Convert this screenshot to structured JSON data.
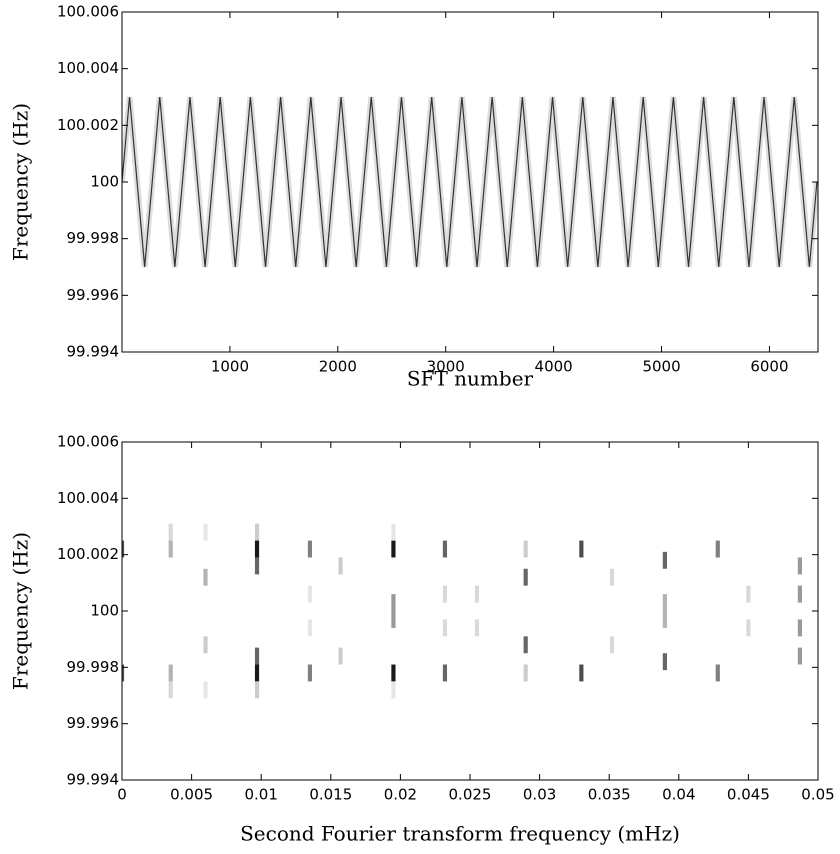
{
  "chart_data": [
    {
      "type": "line",
      "xlabel": "SFT number",
      "ylabel": "Frequency (Hz)",
      "xlim": [
        0,
        6450
      ],
      "xticks": [
        1000,
        2000,
        3000,
        4000,
        5000,
        6000
      ],
      "ylim": [
        99.994,
        100.006
      ],
      "yticks": [
        99.994,
        99.996,
        99.998,
        100,
        100.002,
        100.004,
        100.006
      ],
      "x": [
        0,
        70,
        140,
        210,
        280,
        350,
        420,
        490,
        560,
        630,
        700,
        770,
        840,
        910,
        980,
        1050,
        1120,
        1190,
        1260,
        1330,
        1400,
        1470,
        1540,
        1610,
        1680,
        1750,
        1820,
        1890,
        1960,
        2030,
        2100,
        2170,
        2240,
        2310,
        2380,
        2450,
        2520,
        2590,
        2660,
        2730,
        2800,
        2870,
        2940,
        3010,
        3080,
        3150,
        3220,
        3290,
        3360,
        3430,
        3500,
        3570,
        3640,
        3710,
        3780,
        3850,
        3920,
        3990,
        4060,
        4130,
        4200,
        4270,
        4340,
        4410,
        4480,
        4550,
        4620,
        4690,
        4760,
        4830,
        4900,
        4970,
        5040,
        5110,
        5180,
        5250,
        5320,
        5390,
        5460,
        5530,
        5600,
        5670,
        5740,
        5810,
        5880,
        5950,
        6020,
        6090,
        6160,
        6230,
        6300,
        6370,
        6440
      ],
      "series": [
        {
          "color": "#333333",
          "values": [
            100,
            100.003,
            100,
            99.997,
            100,
            100.003,
            100,
            99.997,
            100,
            100.003,
            100,
            99.997,
            100,
            100.003,
            100,
            99.997,
            100,
            100.003,
            100,
            99.997,
            100,
            100.003,
            100,
            99.997,
            100,
            100.003,
            100,
            99.997,
            100,
            100.003,
            100,
            99.997,
            100,
            100.003,
            100,
            99.997,
            100,
            100.003,
            100,
            99.997,
            100,
            100.003,
            100,
            99.997,
            100,
            100.003,
            100,
            99.997,
            100,
            100.003,
            100,
            99.997,
            100,
            100.003,
            100,
            99.997,
            100,
            100.003,
            100,
            99.997,
            100,
            100.003,
            100,
            99.997,
            100,
            100.003,
            100,
            99.997,
            100,
            100.003,
            100,
            99.997,
            100,
            100.003,
            100,
            99.997,
            100,
            100.003,
            100,
            99.997,
            100,
            100.003,
            100,
            99.997,
            100,
            100.003,
            100,
            99.997,
            100,
            100.003,
            100,
            99.997,
            100
          ]
        }
      ]
    },
    {
      "type": "heatmap",
      "xlabel": "Second Fourier transform frequency (mHz)",
      "ylabel": "Frequency (Hz)",
      "xlim": [
        0,
        0.05
      ],
      "xticks": [
        0,
        0.005,
        0.01,
        0.015,
        0.02,
        0.025,
        0.03,
        0.035,
        0.04,
        0.045,
        0.05
      ],
      "ylim": [
        99.994,
        100.006
      ],
      "yticks": [
        99.994,
        99.996,
        99.998,
        100,
        100.002,
        100.004,
        100.006
      ],
      "x": [
        0,
        0,
        0.0035,
        0.0035,
        0.0035,
        0.0035,
        0.006,
        0.006,
        0.006,
        0.006,
        0.0097,
        0.0097,
        0.0097,
        0.0097,
        0.0097,
        0.0097,
        0.0135,
        0.0135,
        0.0135,
        0.0135,
        0.0157,
        0.0157,
        0.0195,
        0.0195,
        0.0195,
        0.0195,
        0.0195,
        0.0195,
        0.0232,
        0.0232,
        0.0232,
        0.0232,
        0.0255,
        0.0255,
        0.029,
        0.029,
        0.029,
        0.029,
        0.033,
        0.033,
        0.0352,
        0.0352,
        0.039,
        0.039,
        0.039,
        0.039,
        0.0428,
        0.0428,
        0.045,
        0.045,
        0.0487,
        0.0487,
        0.0487,
        0.0487
      ],
      "y": [
        100.0022,
        99.9978,
        100.0028,
        100.0022,
        99.9978,
        99.9972,
        100.0012,
        99.9988,
        100.0028,
        99.9972,
        100.0028,
        100.0022,
        100.0016,
        99.9984,
        99.9978,
        99.9972,
        100.0022,
        99.9978,
        100.0006,
        99.9994,
        100.0016,
        99.9984,
        100.0022,
        100.0003,
        99.9997,
        99.9978,
        100.0028,
        99.9972,
        100.0022,
        99.9978,
        100.0006,
        99.9994,
        100.0006,
        99.9994,
        100.0012,
        99.9988,
        100.0022,
        99.9978,
        100.0022,
        99.9978,
        100.0012,
        99.9988,
        100.0018,
        99.9982,
        100.0003,
        99.9997,
        100.0022,
        99.9978,
        100.0006,
        99.9994,
        100.0016,
        100.0006,
        99.9994,
        99.9984
      ],
      "values": [
        0.7,
        0.7,
        0.15,
        0.3,
        0.3,
        0.15,
        0.3,
        0.2,
        0.1,
        0.1,
        0.2,
        0.9,
        0.6,
        0.6,
        0.9,
        0.2,
        0.5,
        0.5,
        0.1,
        0.1,
        0.2,
        0.2,
        0.9,
        0.4,
        0.4,
        0.9,
        0.1,
        0.1,
        0.6,
        0.6,
        0.15,
        0.15,
        0.15,
        0.15,
        0.6,
        0.6,
        0.2,
        0.2,
        0.7,
        0.7,
        0.15,
        0.15,
        0.6,
        0.6,
        0.3,
        0.3,
        0.5,
        0.5,
        0.15,
        0.15,
        0.4,
        0.4,
        0.4,
        0.4
      ]
    }
  ]
}
